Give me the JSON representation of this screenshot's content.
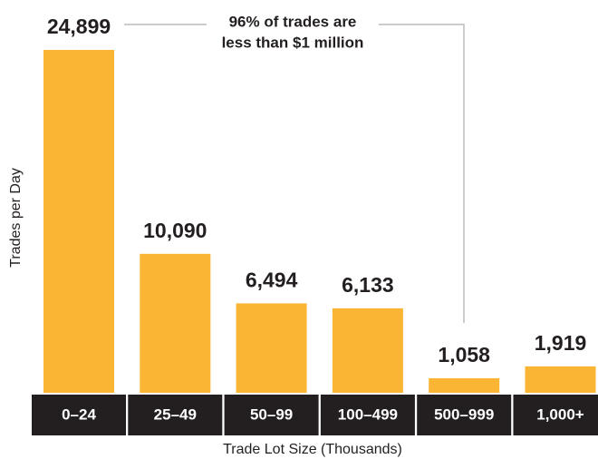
{
  "chart_data": {
    "type": "bar",
    "categories": [
      "0–24",
      "25–49",
      "50–99",
      "100–499",
      "500–999",
      "1,000+"
    ],
    "values": [
      24899,
      10090,
      6494,
      6133,
      1058,
      1919
    ],
    "value_labels": [
      "24,899",
      "10,090",
      "6,494",
      "6,133",
      "1,058",
      "1,919"
    ],
    "color": "#fbb534",
    "xlabel": "Trade Lot Size (Thousands)",
    "ylabel": "Trades per Day",
    "annotation": [
      "96% of trades are",
      "less than $1 million"
    ]
  }
}
